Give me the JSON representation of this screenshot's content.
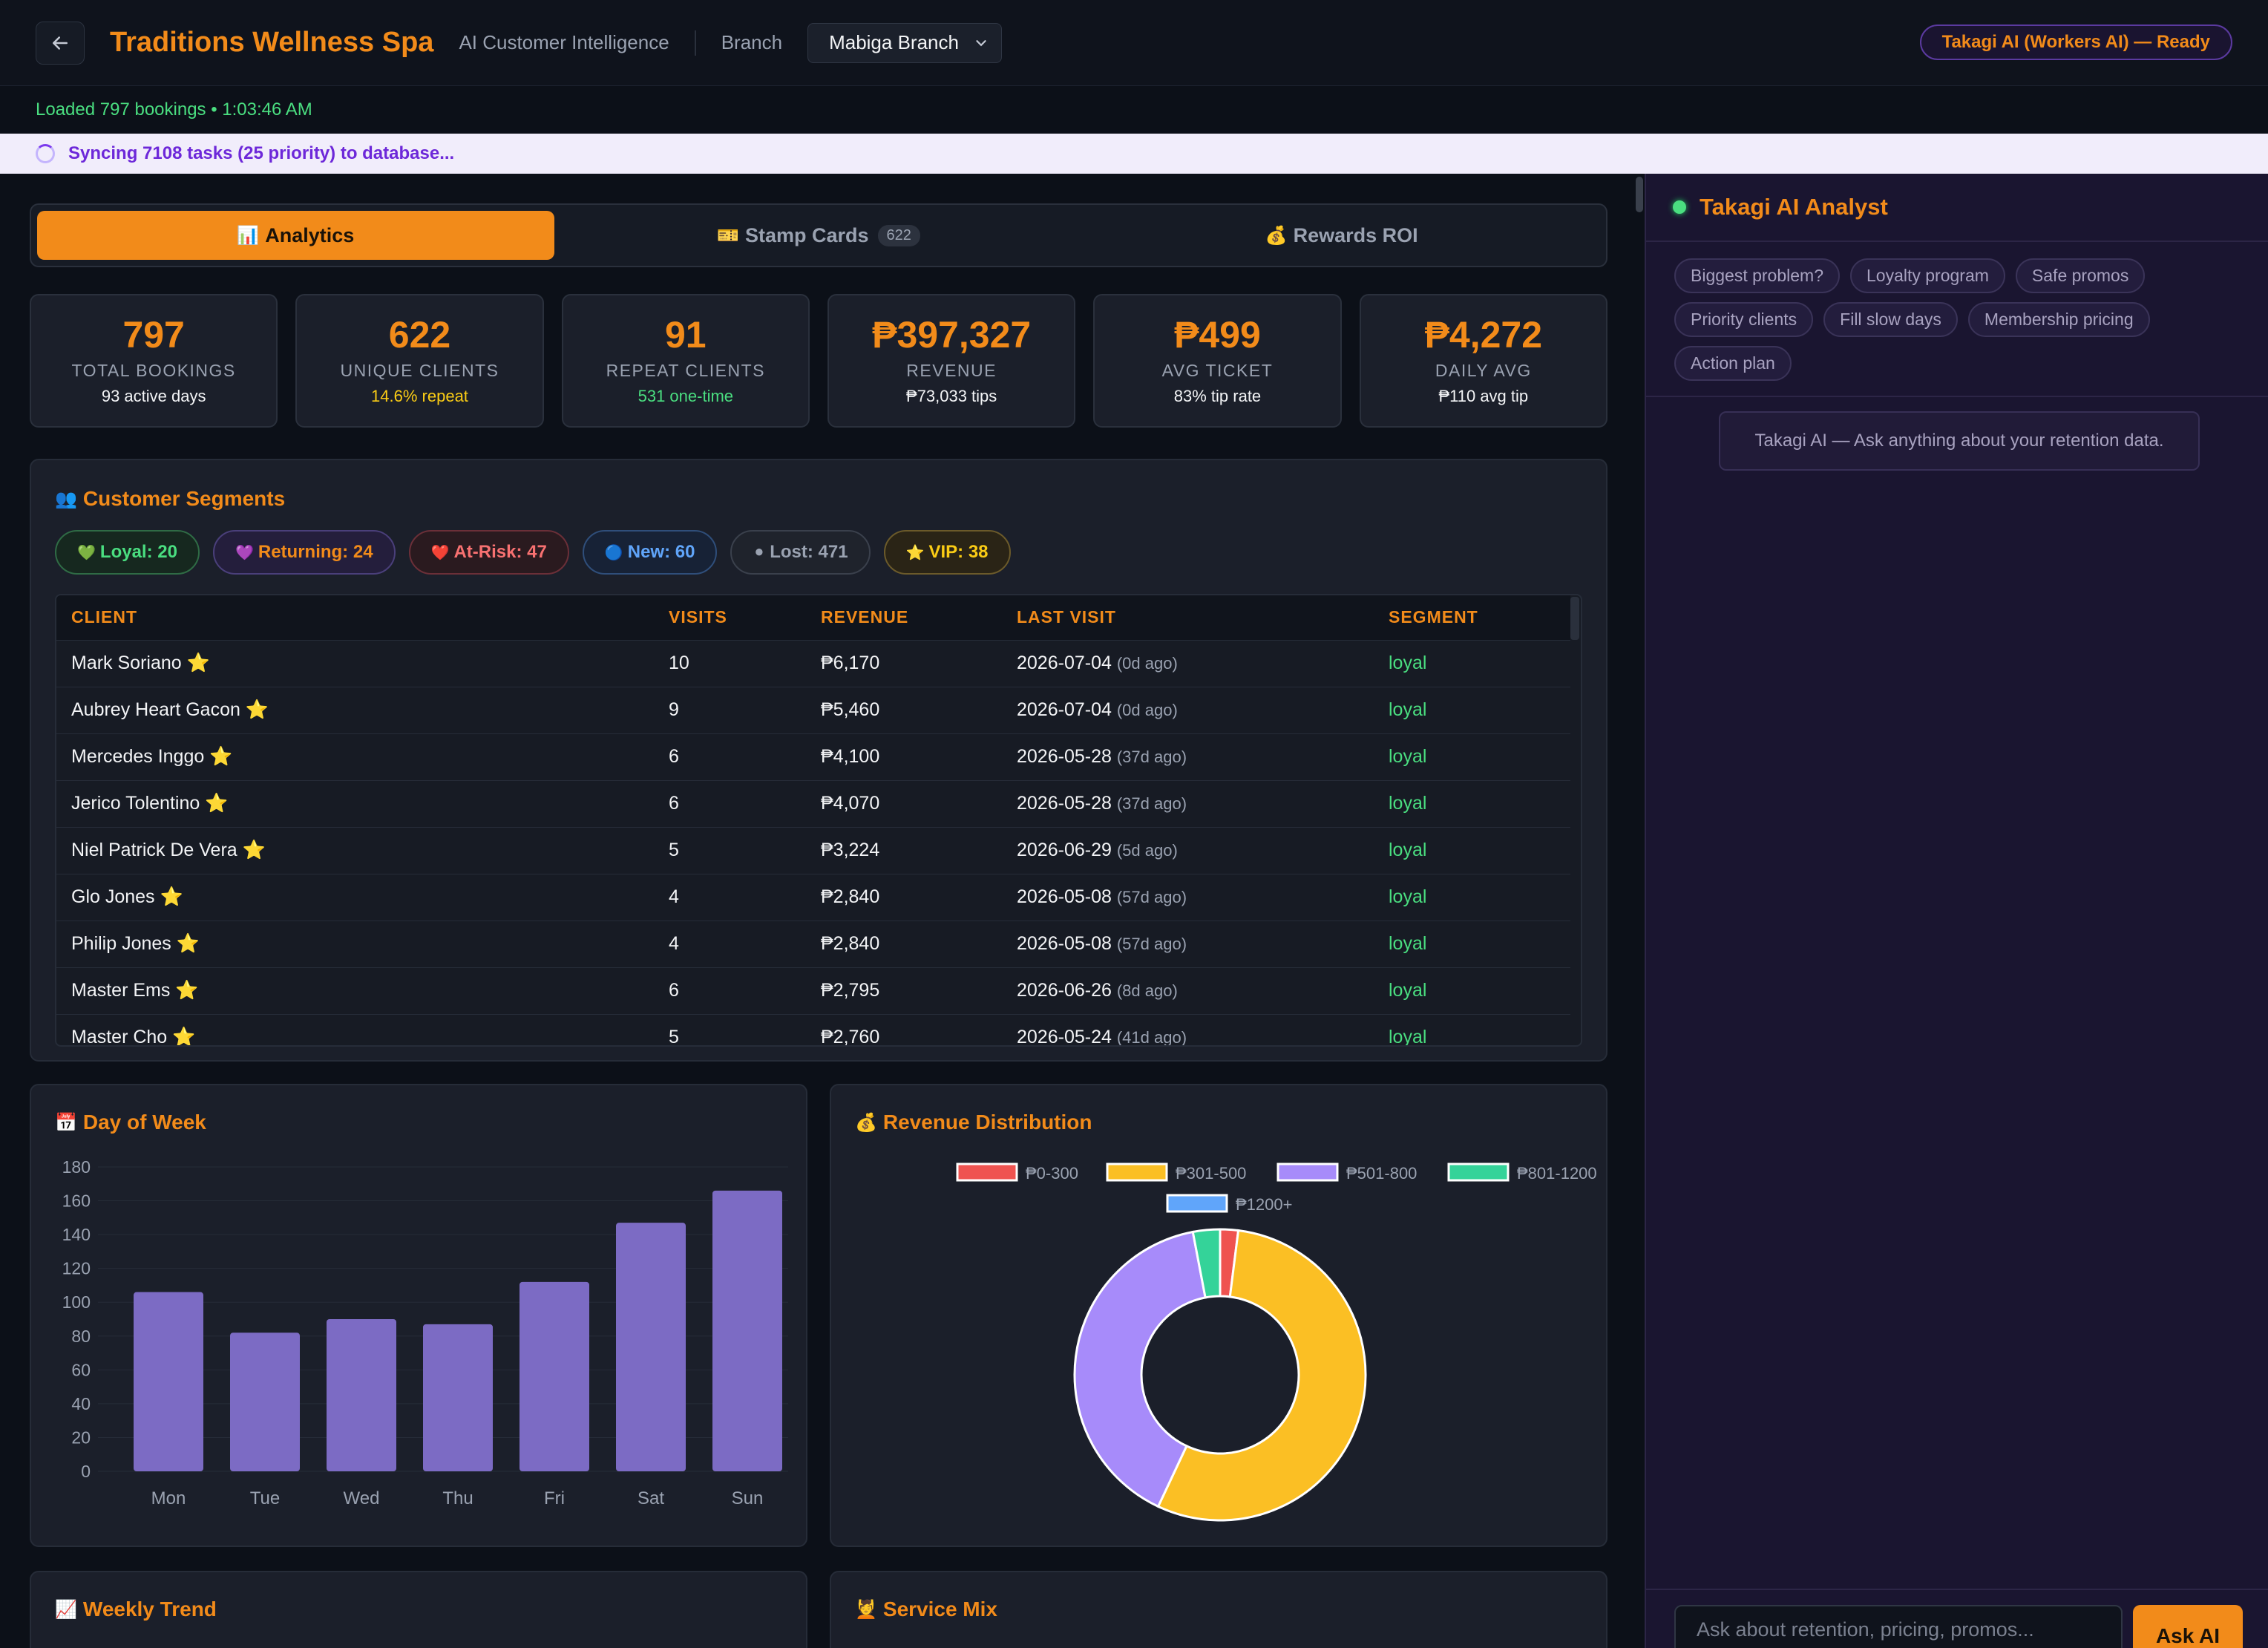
{
  "header": {
    "title": "Traditions Wellness Spa",
    "subtitle": "AI Customer Intelligence",
    "branch_label": "Branch",
    "branch_value": "Mabiga Branch",
    "ai_status": "Takagi AI (Workers AI) — Ready"
  },
  "status": {
    "loaded": "Loaded 797 bookings • 1:03:46 AM",
    "sync": "Syncing 7108 tasks (25 priority) to database..."
  },
  "tabs": [
    {
      "icon": "📊",
      "label": "Analytics",
      "active": true,
      "count": ""
    },
    {
      "icon": "🎫",
      "label": "Stamp Cards",
      "active": false,
      "count": "622"
    },
    {
      "icon": "💰",
      "label": "Rewards ROI",
      "active": false,
      "count": ""
    }
  ],
  "kpis": [
    {
      "value": "797",
      "label": "TOTAL BOOKINGS",
      "sub": "93 active days",
      "sub_color": "white"
    },
    {
      "value": "622",
      "label": "UNIQUE CLIENTS",
      "sub": "14.6% repeat",
      "sub_color": "yellow"
    },
    {
      "value": "91",
      "label": "REPEAT CLIENTS",
      "sub": "531 one-time",
      "sub_color": "green"
    },
    {
      "value": "₱397,327",
      "label": "REVENUE",
      "sub": "₱73,033 tips",
      "sub_color": "white"
    },
    {
      "value": "₱499",
      "label": "AVG TICKET",
      "sub": "83% tip rate",
      "sub_color": "white"
    },
    {
      "value": "₱4,272",
      "label": "DAILY AVG",
      "sub": "₱110 avg tip",
      "sub_color": "white"
    }
  ],
  "segments": {
    "icon": "👥",
    "title": "Customer Segments",
    "chips": [
      {
        "icon": "💚",
        "label": "Loyal: 20",
        "color": "#4ade80",
        "bg": "#16281f",
        "border": "#2f6b45"
      },
      {
        "icon": "💜",
        "label": "Returning: 24",
        "color": "#f28b1a",
        "bg": "#241e3c",
        "border": "#4a3f7a"
      },
      {
        "icon": "❤️",
        "label": "At-Risk: 47",
        "color": "#f87171",
        "bg": "#2a1a1f",
        "border": "#6b2f38"
      },
      {
        "icon": "🔵",
        "label": "New: 60",
        "color": "#60a5fa",
        "bg": "#172236",
        "border": "#2f4e7a"
      },
      {
        "icon": "⚫",
        "label": "Lost: 471",
        "color": "#9aa2b1",
        "bg": "#1f232c",
        "border": "#3a404c"
      },
      {
        "icon": "⭐",
        "label": "VIP: 38",
        "color": "#facc15",
        "bg": "#2a2416",
        "border": "#6b5a2a"
      }
    ],
    "columns": [
      "CLIENT",
      "VISITS",
      "REVENUE",
      "LAST VISIT",
      "SEGMENT"
    ],
    "rows": [
      {
        "client": "Mark Soriano ⭐",
        "visits": "10",
        "revenue": "₱6,170",
        "date": "2026-07-04",
        "ago": "(0d ago)",
        "segment": "loyal"
      },
      {
        "client": "Aubrey Heart Gacon ⭐",
        "visits": "9",
        "revenue": "₱5,460",
        "date": "2026-07-04",
        "ago": "(0d ago)",
        "segment": "loyal"
      },
      {
        "client": "Mercedes Inggo ⭐",
        "visits": "6",
        "revenue": "₱4,100",
        "date": "2026-05-28",
        "ago": "(37d ago)",
        "segment": "loyal"
      },
      {
        "client": "Jerico Tolentino ⭐",
        "visits": "6",
        "revenue": "₱4,070",
        "date": "2026-05-28",
        "ago": "(37d ago)",
        "segment": "loyal"
      },
      {
        "client": "Niel Patrick De Vera ⭐",
        "visits": "5",
        "revenue": "₱3,224",
        "date": "2026-06-29",
        "ago": "(5d ago)",
        "segment": "loyal"
      },
      {
        "client": "Glo Jones ⭐",
        "visits": "4",
        "revenue": "₱2,840",
        "date": "2026-05-08",
        "ago": "(57d ago)",
        "segment": "loyal"
      },
      {
        "client": "Philip Jones ⭐",
        "visits": "4",
        "revenue": "₱2,840",
        "date": "2026-05-08",
        "ago": "(57d ago)",
        "segment": "loyal"
      },
      {
        "client": "Master Ems ⭐",
        "visits": "6",
        "revenue": "₱2,795",
        "date": "2026-06-26",
        "ago": "(8d ago)",
        "segment": "loyal"
      },
      {
        "client": "Master Cho ⭐",
        "visits": "5",
        "revenue": "₱2,760",
        "date": "2026-05-24",
        "ago": "(41d ago)",
        "segment": "loyal"
      }
    ]
  },
  "panels": {
    "dow": {
      "icon": "📅",
      "title": "Day of Week"
    },
    "rev": {
      "icon": "💰",
      "title": "Revenue Distribution"
    },
    "trend": {
      "icon": "📈",
      "title": "Weekly Trend"
    },
    "mix": {
      "icon": "💆",
      "title": "Service Mix"
    }
  },
  "chart_data": [
    {
      "type": "bar",
      "categories": [
        "Mon",
        "Tue",
        "Wed",
        "Thu",
        "Fri",
        "Sat",
        "Sun"
      ],
      "values": [
        106,
        82,
        90,
        87,
        112,
        147,
        166
      ],
      "ylim": [
        0,
        180
      ],
      "yticks": [
        0,
        20,
        40,
        60,
        80,
        100,
        120,
        140,
        160,
        180
      ],
      "color": "#7c6bc4",
      "grid": true
    },
    {
      "type": "pie",
      "donut": true,
      "legend_position": "top",
      "labels": [
        "₱0-300",
        "₱301-500",
        "₱501-800",
        "₱801-1200",
        "₱1200+"
      ],
      "values": [
        2,
        55,
        40,
        3,
        0
      ],
      "colors": [
        "#ef5350",
        "#fbbf24",
        "#a78bfa",
        "#34d399",
        "#60a5fa"
      ]
    }
  ],
  "sidebar": {
    "title": "Takagi AI Analyst",
    "suggestions": [
      "Biggest problem?",
      "Loyalty program",
      "Safe promos",
      "Priority clients",
      "Fill slow days",
      "Membership pricing",
      "Action plan"
    ],
    "welcome": "Takagi AI — Ask anything about your retention data.",
    "input_placeholder": "Ask about retention, pricing, promos...",
    "ask_label": "Ask AI"
  }
}
